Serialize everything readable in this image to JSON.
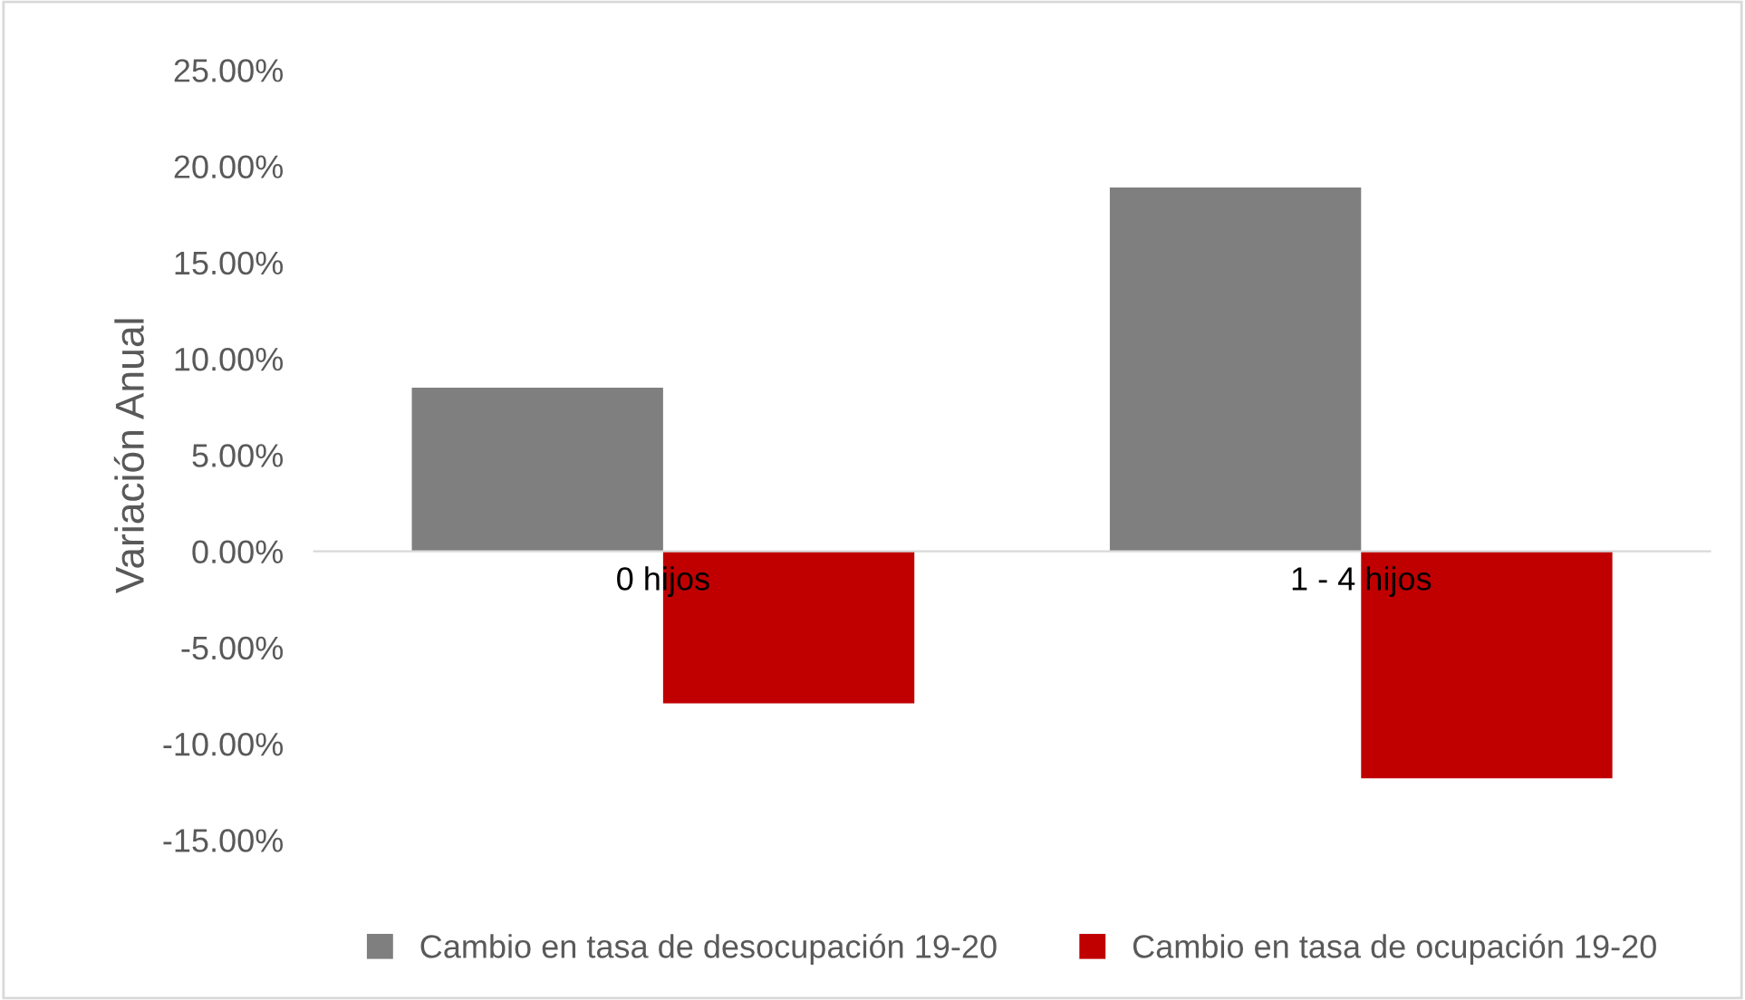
{
  "chart_data": {
    "type": "bar",
    "ylabel": "Variación Anual",
    "categories": [
      "0 hijos",
      "1 - 4 hijos"
    ],
    "series": [
      {
        "name": "Cambio en tasa de desocupación 19-20",
        "color": "#7f7f7f",
        "values": [
          8.5,
          18.9
        ]
      },
      {
        "name": "Cambio en tasa de ocupación 19-20",
        "color": "#c00000",
        "values": [
          -7.9,
          -11.8
        ]
      }
    ],
    "ylim": [
      -15,
      25
    ],
    "yticks": [
      {
        "value": -15,
        "label": "-15.00%"
      },
      {
        "value": -10,
        "label": "-10.00%"
      },
      {
        "value": -5,
        "label": "-5.00%"
      },
      {
        "value": 0,
        "label": "0.00%"
      },
      {
        "value": 5,
        "label": "5.00%"
      },
      {
        "value": 10,
        "label": "10.00%"
      },
      {
        "value": 15,
        "label": "15.00%"
      },
      {
        "value": 20,
        "label": "20.00%"
      },
      {
        "value": 25,
        "label": "25.00%"
      }
    ],
    "grid": false,
    "legend": "bottom"
  }
}
